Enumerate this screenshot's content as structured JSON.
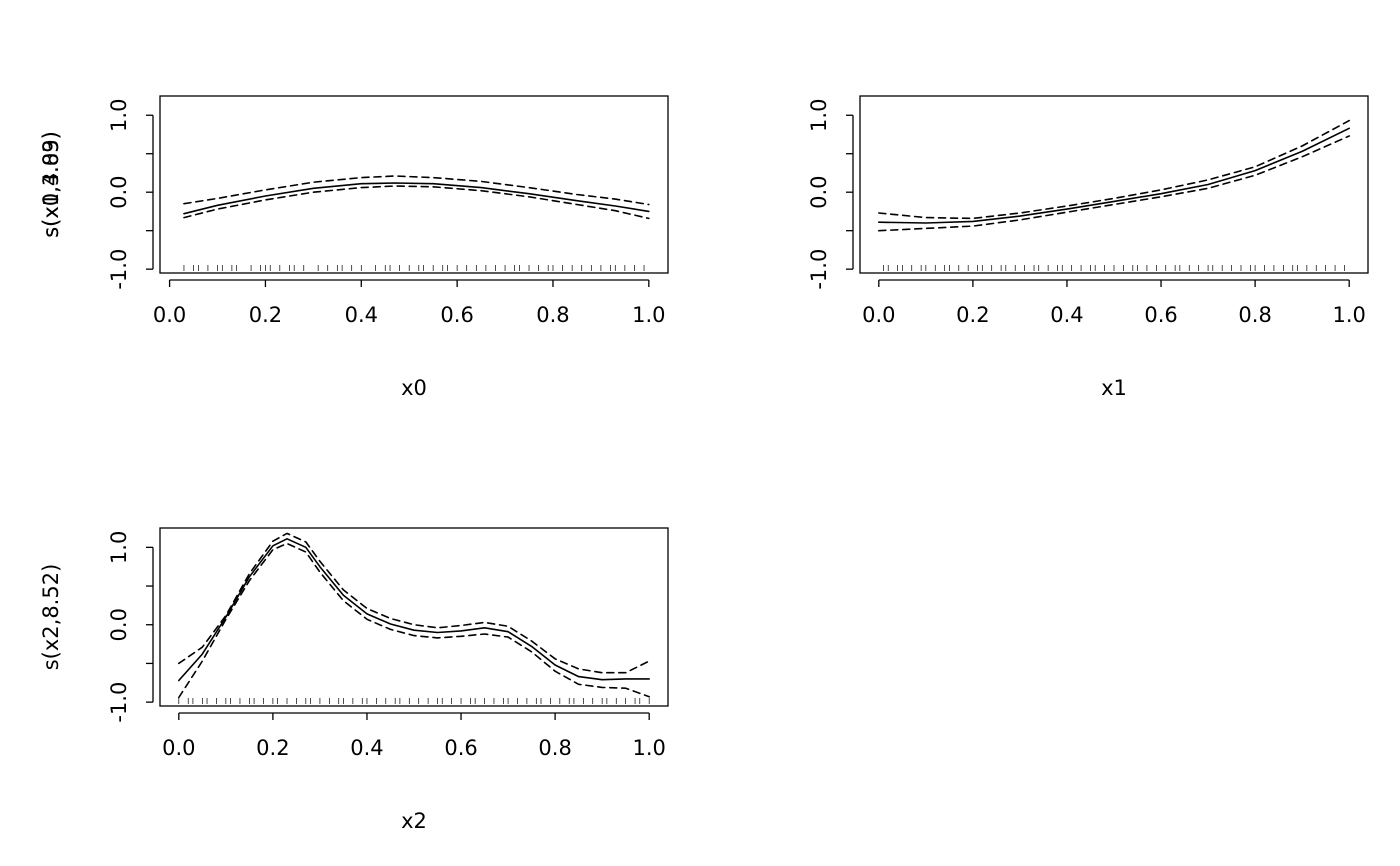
{
  "chart_data": [
    {
      "type": "line",
      "xlabel": "x0",
      "ylabel": "s(x0,3.83)",
      "xlim": [
        -0.02,
        1.04
      ],
      "ylim": [
        -1.05,
        1.25
      ],
      "xticks": [
        0.0,
        0.2,
        0.4,
        0.6,
        0.8,
        1.0
      ],
      "xtick_labels": [
        "0.0",
        "0.2",
        "0.4",
        "0.6",
        "0.8",
        "1.0"
      ],
      "yticks": [
        -1.0,
        -0.5,
        0.0,
        0.5,
        1.0
      ],
      "ytick_labels": [
        "-1.0",
        "",
        "0.0",
        "",
        "1.0"
      ],
      "x": [
        0.03,
        0.1,
        0.2,
        0.3,
        0.4,
        0.47,
        0.55,
        0.65,
        0.75,
        0.85,
        0.93,
        1.0
      ],
      "series": [
        {
          "role": "fit",
          "style": "solid",
          "values": [
            -0.28,
            -0.17,
            -0.05,
            0.05,
            0.11,
            0.12,
            0.11,
            0.06,
            -0.02,
            -0.11,
            -0.18,
            -0.25
          ]
        },
        {
          "role": "upper",
          "style": "dashed",
          "values": [
            -0.15,
            -0.08,
            0.03,
            0.13,
            0.19,
            0.21,
            0.19,
            0.14,
            0.06,
            -0.03,
            -0.09,
            -0.16
          ]
        },
        {
          "role": "lower",
          "style": "dashed",
          "values": [
            -0.33,
            -0.22,
            -0.1,
            0.0,
            0.06,
            0.08,
            0.07,
            0.02,
            -0.06,
            -0.16,
            -0.24,
            -0.34
          ]
        }
      ],
      "rug": [
        0.03,
        0.05,
        0.06,
        0.08,
        0.1,
        0.11,
        0.13,
        0.14,
        0.17,
        0.19,
        0.2,
        0.21,
        0.23,
        0.25,
        0.26,
        0.28,
        0.31,
        0.33,
        0.35,
        0.36,
        0.38,
        0.4,
        0.43,
        0.45,
        0.46,
        0.48,
        0.5,
        0.52,
        0.53,
        0.55,
        0.57,
        0.58,
        0.6,
        0.62,
        0.64,
        0.66,
        0.68,
        0.7,
        0.72,
        0.73,
        0.75,
        0.77,
        0.79,
        0.8,
        0.82,
        0.84,
        0.86,
        0.88,
        0.9,
        0.92,
        0.93,
        0.95,
        0.97,
        0.99
      ]
    },
    {
      "type": "line",
      "xlabel": "x1",
      "ylabel": "s(x1,4.09)",
      "xlim": [
        -0.04,
        1.04
      ],
      "ylim": [
        -1.05,
        1.25
      ],
      "xticks": [
        0.0,
        0.2,
        0.4,
        0.6,
        0.8,
        1.0
      ],
      "xtick_labels": [
        "0.0",
        "0.2",
        "0.4",
        "0.6",
        "0.8",
        "1.0"
      ],
      "yticks": [
        -1.0,
        -0.5,
        0.0,
        0.5,
        1.0
      ],
      "ytick_labels": [
        "-1.0",
        "",
        "0.0",
        "",
        "1.0"
      ],
      "x": [
        0.0,
        0.1,
        0.2,
        0.3,
        0.4,
        0.5,
        0.6,
        0.7,
        0.8,
        0.9,
        1.0
      ],
      "series": [
        {
          "role": "fit",
          "style": "solid",
          "values": [
            -0.39,
            -0.4,
            -0.38,
            -0.31,
            -0.22,
            -0.12,
            -0.02,
            0.1,
            0.28,
            0.53,
            0.83
          ]
        },
        {
          "role": "upper",
          "style": "dashed",
          "values": [
            -0.27,
            -0.33,
            -0.34,
            -0.27,
            -0.18,
            -0.08,
            0.03,
            0.16,
            0.33,
            0.6,
            0.93
          ]
        },
        {
          "role": "lower",
          "style": "dashed",
          "values": [
            -0.5,
            -0.47,
            -0.44,
            -0.36,
            -0.26,
            -0.16,
            -0.06,
            0.05,
            0.22,
            0.46,
            0.73
          ]
        }
      ],
      "rug": [
        0.01,
        0.02,
        0.04,
        0.05,
        0.07,
        0.09,
        0.1,
        0.12,
        0.14,
        0.15,
        0.17,
        0.19,
        0.21,
        0.22,
        0.24,
        0.26,
        0.27,
        0.29,
        0.31,
        0.33,
        0.34,
        0.36,
        0.38,
        0.39,
        0.41,
        0.43,
        0.45,
        0.46,
        0.48,
        0.5,
        0.52,
        0.54,
        0.55,
        0.57,
        0.59,
        0.61,
        0.63,
        0.64,
        0.66,
        0.68,
        0.7,
        0.71,
        0.73,
        0.75,
        0.77,
        0.79,
        0.8,
        0.82,
        0.84,
        0.86,
        0.88,
        0.89,
        0.91,
        0.93,
        0.95,
        0.97,
        0.99
      ]
    },
    {
      "type": "line",
      "xlabel": "x2",
      "ylabel": "s(x2,8.52)",
      "xlim": [
        -0.04,
        1.04
      ],
      "ylim": [
        -1.05,
        1.25
      ],
      "xticks": [
        0.0,
        0.2,
        0.4,
        0.6,
        0.8,
        1.0
      ],
      "xtick_labels": [
        "0.0",
        "0.2",
        "0.4",
        "0.6",
        "0.8",
        "1.0"
      ],
      "yticks": [
        -1.0,
        -0.5,
        0.0,
        0.5,
        1.0
      ],
      "ytick_labels": [
        "-1.0",
        "",
        "0.0",
        "",
        "1.0"
      ],
      "x": [
        0.0,
        0.05,
        0.1,
        0.15,
        0.2,
        0.23,
        0.27,
        0.3,
        0.35,
        0.4,
        0.45,
        0.5,
        0.55,
        0.6,
        0.65,
        0.7,
        0.75,
        0.8,
        0.85,
        0.9,
        0.95,
        1.0
      ],
      "series": [
        {
          "role": "fit",
          "style": "solid",
          "values": [
            -0.72,
            -0.38,
            0.1,
            0.62,
            1.02,
            1.11,
            1.0,
            0.75,
            0.38,
            0.14,
            0.01,
            -0.07,
            -0.1,
            -0.08,
            -0.04,
            -0.09,
            -0.28,
            -0.52,
            -0.67,
            -0.71,
            -0.7,
            -0.7
          ]
        },
        {
          "role": "upper",
          "style": "dashed",
          "values": [
            -0.5,
            -0.29,
            0.12,
            0.66,
            1.08,
            1.18,
            1.07,
            0.82,
            0.45,
            0.21,
            0.08,
            0.0,
            -0.04,
            -0.01,
            0.03,
            -0.02,
            -0.21,
            -0.44,
            -0.57,
            -0.62,
            -0.62,
            -0.47
          ]
        },
        {
          "role": "lower",
          "style": "dashed",
          "values": [
            -0.94,
            -0.47,
            0.07,
            0.57,
            0.97,
            1.05,
            0.94,
            0.68,
            0.31,
            0.07,
            -0.06,
            -0.14,
            -0.17,
            -0.15,
            -0.12,
            -0.16,
            -0.35,
            -0.6,
            -0.77,
            -0.81,
            -0.82,
            -0.93
          ]
        }
      ],
      "rug": [
        0.0,
        0.02,
        0.03,
        0.05,
        0.06,
        0.08,
        0.1,
        0.11,
        0.13,
        0.15,
        0.16,
        0.18,
        0.2,
        0.21,
        0.23,
        0.25,
        0.27,
        0.28,
        0.3,
        0.32,
        0.34,
        0.35,
        0.37,
        0.39,
        0.4,
        0.42,
        0.44,
        0.46,
        0.47,
        0.49,
        0.51,
        0.53,
        0.55,
        0.56,
        0.58,
        0.6,
        0.62,
        0.63,
        0.65,
        0.67,
        0.69,
        0.7,
        0.72,
        0.74,
        0.76,
        0.77,
        0.79,
        0.81,
        0.83,
        0.84,
        0.86,
        0.88,
        0.9,
        0.91,
        0.93,
        0.95,
        0.97,
        0.98,
        1.0
      ]
    }
  ]
}
